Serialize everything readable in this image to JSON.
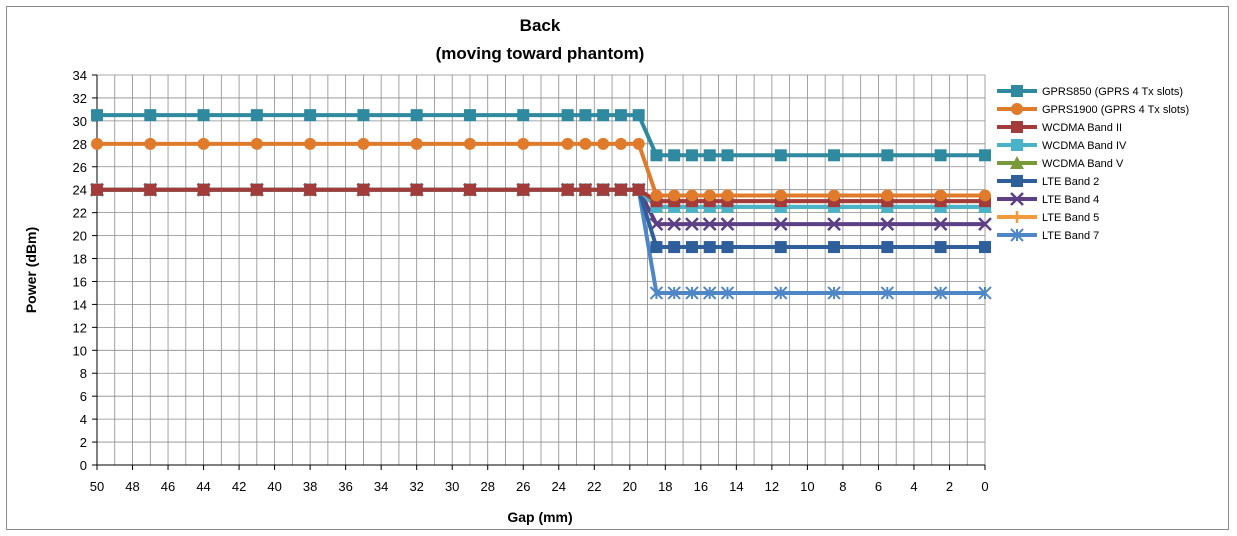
{
  "chart_data": {
    "type": "line",
    "title_line1": "Back",
    "title_line2": "(moving toward phantom)",
    "xlabel": "Gap (mm)",
    "ylabel": "Power (dBm)",
    "xlim": [
      50,
      0
    ],
    "x_reversed": true,
    "ylim": [
      0,
      34
    ],
    "x_ticks": [
      50,
      48,
      46,
      44,
      42,
      40,
      38,
      36,
      34,
      32,
      30,
      28,
      26,
      24,
      22,
      20,
      18,
      16,
      14,
      12,
      10,
      8,
      6,
      4,
      2,
      0
    ],
    "y_ticks": [
      0,
      2,
      4,
      6,
      8,
      10,
      12,
      14,
      16,
      18,
      20,
      22,
      24,
      26,
      28,
      30,
      32,
      34
    ],
    "grid": true,
    "legend_position": "right",
    "x": [
      50,
      47,
      44,
      41,
      38,
      35,
      32,
      29,
      26,
      23.5,
      22.5,
      21.5,
      20.5,
      19.5,
      18.5,
      17.5,
      16.5,
      15.5,
      14.5,
      11.5,
      8.5,
      5.5,
      2.5,
      0
    ],
    "series": [
      {
        "name": "GPRS850 (GPRS 4 Tx slots)",
        "color": "#2f8aa0",
        "marker": "square",
        "values": [
          30.5,
          30.5,
          30.5,
          30.5,
          30.5,
          30.5,
          30.5,
          30.5,
          30.5,
          30.5,
          30.5,
          30.5,
          30.5,
          30.5,
          27,
          27,
          27,
          27,
          27,
          27,
          27,
          27,
          27,
          27
        ]
      },
      {
        "name": "GPRS1900 (GPRS 4 Tx slots)",
        "color": "#e07b2c",
        "marker": "circle",
        "values": [
          28,
          28,
          28,
          28,
          28,
          28,
          28,
          28,
          28,
          28,
          28,
          28,
          28,
          28,
          23.5,
          23.5,
          23.5,
          23.5,
          23.5,
          23.5,
          23.5,
          23.5,
          23.5,
          23.5
        ]
      },
      {
        "name": "WCDMA Band II",
        "color": "#a33b3b",
        "marker": "square",
        "values": [
          24,
          24,
          24,
          24,
          24,
          24,
          24,
          24,
          24,
          24,
          24,
          24,
          24,
          24,
          23,
          23,
          23,
          23,
          23,
          23,
          23,
          23,
          23,
          23
        ]
      },
      {
        "name": "WCDMA Band IV",
        "color": "#4bb3c9",
        "marker": "square",
        "values": [
          24,
          24,
          24,
          24,
          24,
          24,
          24,
          24,
          24,
          24,
          24,
          24,
          24,
          24,
          22.5,
          22.5,
          22.5,
          22.5,
          22.5,
          22.5,
          22.5,
          22.5,
          22.5,
          22.5
        ]
      },
      {
        "name": "WCDMA Band V",
        "color": "#7a9a3a",
        "marker": "triangle",
        "values": [
          24,
          24,
          24,
          24,
          24,
          24,
          24,
          24,
          24,
          24,
          24,
          24,
          24,
          24,
          22.5,
          22.5,
          22.5,
          22.5,
          22.5,
          22.5,
          22.5,
          22.5,
          22.5,
          22.5
        ]
      },
      {
        "name": "LTE Band 2",
        "color": "#2e5f9a",
        "marker": "square",
        "values": [
          24,
          24,
          24,
          24,
          24,
          24,
          24,
          24,
          24,
          24,
          24,
          24,
          24,
          24,
          19,
          19,
          19,
          19,
          19,
          19,
          19,
          19,
          19,
          19
        ]
      },
      {
        "name": "LTE Band 4",
        "color": "#5d3f86",
        "marker": "x",
        "values": [
          24,
          24,
          24,
          24,
          24,
          24,
          24,
          24,
          24,
          24,
          24,
          24,
          24,
          24,
          21,
          21,
          21,
          21,
          21,
          21,
          21,
          21,
          21,
          21
        ]
      },
      {
        "name": "LTE Band 5",
        "color": "#f49a3c",
        "marker": "plus",
        "values": [
          24,
          24,
          24,
          24,
          24,
          24,
          24,
          24,
          24,
          24,
          24,
          24,
          24,
          24,
          23,
          23,
          23,
          23,
          23,
          23,
          23,
          23,
          23,
          23
        ]
      },
      {
        "name": "LTE Band 7",
        "color": "#4f86c6",
        "marker": "star",
        "values": [
          24,
          24,
          24,
          24,
          24,
          24,
          24,
          24,
          24,
          24,
          24,
          24,
          24,
          24,
          15,
          15,
          15,
          15,
          15,
          15,
          15,
          15,
          15,
          15
        ]
      }
    ]
  }
}
